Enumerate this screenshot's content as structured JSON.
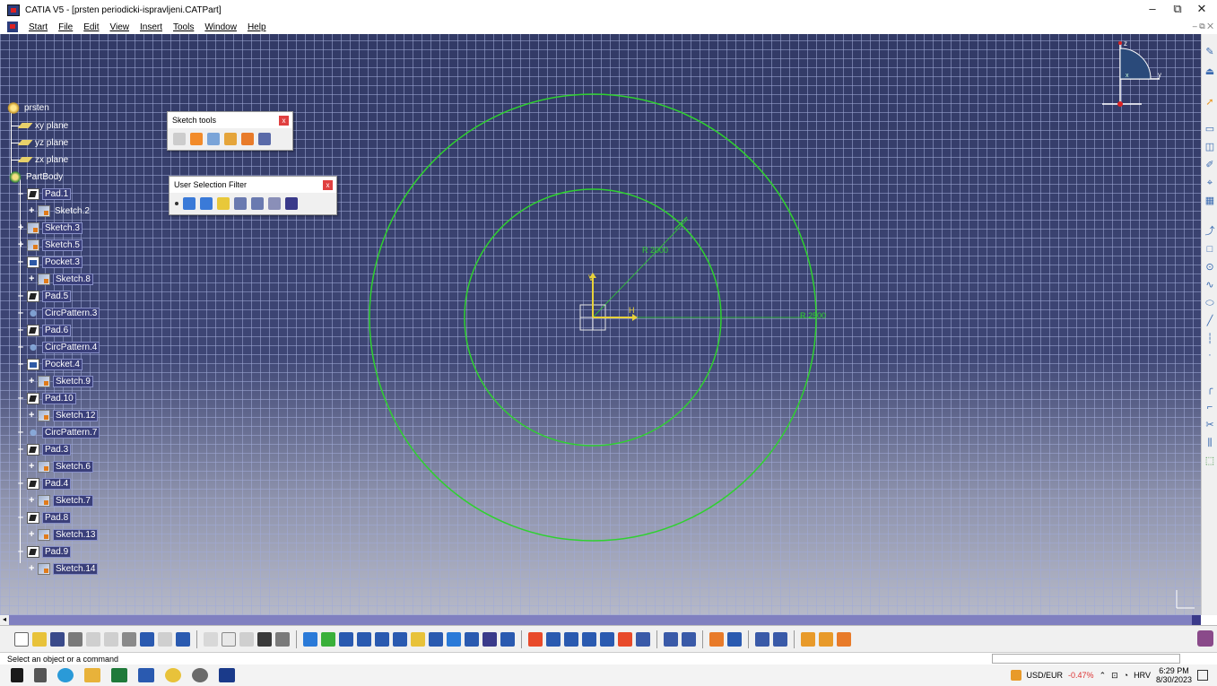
{
  "window": {
    "title": "CATIA V5 - [prsten periodicki-ispravljeni.CATPart]",
    "minimize": "–",
    "restore": "⧉",
    "close": "✕"
  },
  "menu": [
    "Start",
    "File",
    "Edit",
    "View",
    "Insert",
    "Tools",
    "Window",
    "Help"
  ],
  "tree": {
    "root": "prsten",
    "planes": [
      "xy plane",
      "yz plane",
      "zx plane"
    ],
    "body": "PartBody",
    "features": [
      {
        "label": "Pad.1",
        "type": "pad",
        "expanded": true,
        "selected": true
      },
      {
        "label": "Sketch.2",
        "type": "sketch",
        "child": true,
        "selected": false
      },
      {
        "label": "Sketch.3",
        "type": "sketch",
        "selected": true
      },
      {
        "label": "Sketch.5",
        "type": "sketch",
        "selected": true
      },
      {
        "label": "Pocket.3",
        "type": "pocket",
        "selected": true
      },
      {
        "label": "Sketch.8",
        "type": "sketch",
        "child": true,
        "selected": true
      },
      {
        "label": "Pad.5",
        "type": "pad",
        "selected": true
      },
      {
        "label": "CircPattern.3",
        "type": "pattern",
        "selected": true
      },
      {
        "label": "Pad.6",
        "type": "pad",
        "selected": true
      },
      {
        "label": "CircPattern.4",
        "type": "pattern",
        "selected": true
      },
      {
        "label": "Pocket.4",
        "type": "pocket",
        "selected": true
      },
      {
        "label": "Sketch.9",
        "type": "sketch",
        "child": true,
        "selected": true
      },
      {
        "label": "Pad.10",
        "type": "pad",
        "selected": true
      },
      {
        "label": "Sketch.12",
        "type": "sketch",
        "child": true,
        "selected": true
      },
      {
        "label": "CircPattern.7",
        "type": "pattern",
        "selected": true
      },
      {
        "label": "Pad.3",
        "type": "pad",
        "selected": true
      },
      {
        "label": "Sketch.6",
        "type": "sketch",
        "child": true,
        "selected": true
      },
      {
        "label": "Pad.4",
        "type": "pad",
        "selected": true
      },
      {
        "label": "Sketch.7",
        "type": "sketch",
        "child": true,
        "selected": true
      },
      {
        "label": "Pad.8",
        "type": "pad",
        "selected": true
      },
      {
        "label": "Sketch.13",
        "type": "sketch",
        "child": true,
        "selected": true
      },
      {
        "label": "Pad.9",
        "type": "pad",
        "selected": true
      },
      {
        "label": "Sketch.14",
        "type": "sketch",
        "child": true,
        "selected": true
      }
    ]
  },
  "toolbars": {
    "sketch_tools": {
      "title": "Sketch tools",
      "close": "x"
    },
    "selection_filter": {
      "title": "User Selection Filter",
      "close": "x"
    }
  },
  "sketch": {
    "inner_radius_label": "R 2000",
    "outer_radius_label": "R 2500",
    "h_axis": "H",
    "v_axis": "V",
    "circle_color": "#2fd12f",
    "axis_color": "#e8d23a"
  },
  "compass": {
    "z": "z",
    "y": "y",
    "x": "x"
  },
  "status": {
    "message": "Select an object or a command",
    "command_placeholder": ""
  },
  "taskbar": {
    "currency": "USD/EUR",
    "change": "-0.47%",
    "language": "HRV",
    "time": "6:29 PM",
    "date": "8/30/2023"
  }
}
